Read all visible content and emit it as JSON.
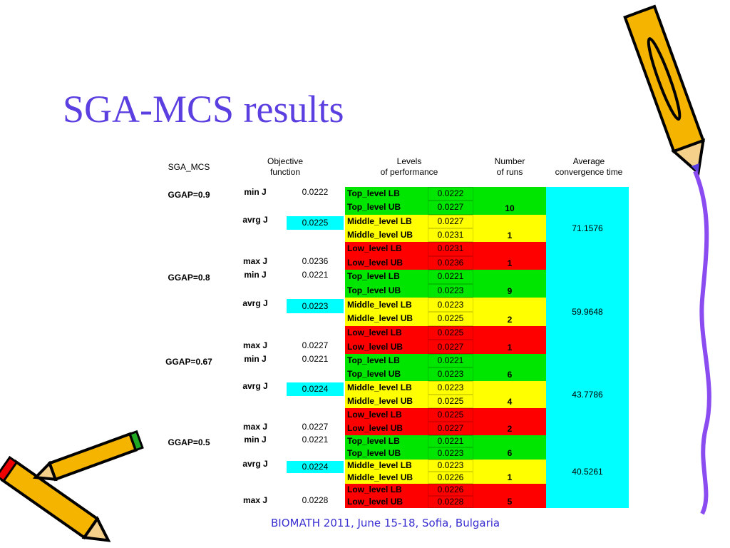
{
  "title": "SGA-MCS results",
  "footer": "BIOMATH 2011, June 15-18, Sofia, Bulgaria",
  "table": {
    "headers": [
      "SGA_MCS",
      "Objective\nfunction",
      "Levels\nof performance",
      "Number\nof runs",
      "Average\nconvergence time"
    ],
    "groups": [
      {
        "name": "GGAP=0.9",
        "stats": [
          {
            "label": "min J",
            "value": 0.0222
          },
          {
            "label": "avrg J",
            "value": 0.0225
          },
          {
            "label": "max J",
            "value": 0.0236
          }
        ],
        "levels": [
          {
            "label": "Top_level LB",
            "value": 0.0222
          },
          {
            "label": "Top_level UB",
            "value": 0.0227
          },
          {
            "label": "Middle_level LB",
            "value": 0.0227
          },
          {
            "label": "Middle_level UB",
            "value": 0.0231
          },
          {
            "label": "Low_level LB",
            "value": 0.0231
          },
          {
            "label": "Low_level UB",
            "value": 0.0236
          }
        ],
        "runs": [
          10,
          1,
          1
        ],
        "avg_time": 71.1576
      },
      {
        "name": "GGAP=0.8",
        "stats": [
          {
            "label": "min J",
            "value": 0.0221
          },
          {
            "label": "avrg J",
            "value": 0.0223
          },
          {
            "label": "max J",
            "value": 0.0227
          }
        ],
        "levels": [
          {
            "label": "Top_level LB",
            "value": 0.0221
          },
          {
            "label": "Top_level UB",
            "value": 0.0223
          },
          {
            "label": "Middle_level LB",
            "value": 0.0223
          },
          {
            "label": "Middle_level UB",
            "value": 0.0225
          },
          {
            "label": "Low_level LB",
            "value": 0.0225
          },
          {
            "label": "Low_level UB",
            "value": 0.0227
          }
        ],
        "runs": [
          9,
          2,
          1
        ],
        "avg_time": 59.9648
      },
      {
        "name": "GGAP=0.67",
        "stats": [
          {
            "label": "min J",
            "value": 0.0221
          },
          {
            "label": "avrg J",
            "value": 0.0224
          },
          {
            "label": "max J",
            "value": 0.0227
          }
        ],
        "levels": [
          {
            "label": "Top_level LB",
            "value": 0.0221
          },
          {
            "label": "Top_level UB",
            "value": 0.0223
          },
          {
            "label": "Middle_level LB",
            "value": 0.0223
          },
          {
            "label": "Middle_level UB",
            "value": 0.0225
          },
          {
            "label": "Low_level LB",
            "value": 0.0225
          },
          {
            "label": "Low_level UB",
            "value": 0.0227
          }
        ],
        "runs": [
          6,
          4,
          2
        ],
        "avg_time": 43.7786
      },
      {
        "name": "GGAP=0.5",
        "stats": [
          {
            "label": "min J",
            "value": 0.0221
          },
          {
            "label": "avrg J",
            "value": 0.0224
          },
          {
            "label": "max J",
            "value": 0.0228
          }
        ],
        "levels": [
          {
            "label": "Top_level LB",
            "value": 0.0221
          },
          {
            "label": "Top_level UB",
            "value": 0.0223
          },
          {
            "label": "Middle_level LB",
            "value": 0.0223
          },
          {
            "label": "Middle_level UB",
            "value": 0.0226
          },
          {
            "label": "Low_level LB",
            "value": 0.0226
          },
          {
            "label": "Low_level UB",
            "value": 0.0228
          }
        ],
        "runs": [
          6,
          1,
          5
        ],
        "avg_time": 40.5261
      }
    ]
  }
}
